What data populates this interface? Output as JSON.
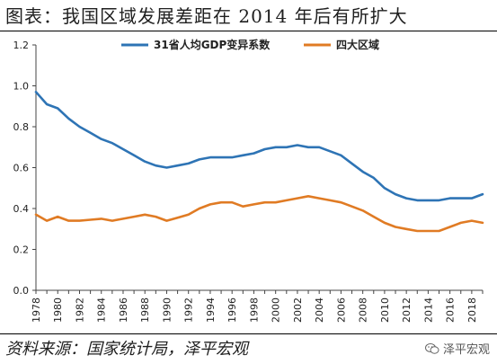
{
  "header": {
    "title": "图表：我国区域发展差距在 2014 年后有所扩大"
  },
  "footer": {
    "source": "资料来源：国家统计局，泽平宏观",
    "watermark": "泽平宏观",
    "watermark_icon": "wechat-icon"
  },
  "chart_data": {
    "type": "line",
    "title": "",
    "xlabel": "",
    "ylabel": "",
    "xlim": [
      1978,
      2019
    ],
    "ylim": [
      0,
      1.2
    ],
    "yticks": [
      "0.0",
      "0.2",
      "0.4",
      "0.6",
      "0.8",
      "1.0",
      "1.2"
    ],
    "xticks": [
      "1978",
      "1980",
      "1982",
      "1984",
      "1986",
      "1988",
      "1990",
      "1992",
      "1994",
      "1996",
      "1998",
      "2000",
      "2002",
      "2004",
      "2006",
      "2008",
      "2010",
      "2012",
      "2014",
      "2016",
      "2018"
    ],
    "grid": false,
    "legend_position": "top",
    "x": [
      1978,
      1979,
      1980,
      1981,
      1982,
      1983,
      1984,
      1985,
      1986,
      1987,
      1988,
      1989,
      1990,
      1991,
      1992,
      1993,
      1994,
      1995,
      1996,
      1997,
      1998,
      1999,
      2000,
      2001,
      2002,
      2003,
      2004,
      2005,
      2006,
      2007,
      2008,
      2009,
      2010,
      2011,
      2012,
      2013,
      2014,
      2015,
      2016,
      2017,
      2018,
      2019
    ],
    "series": [
      {
        "name": "31省人均GDP变异系数",
        "color": "#2E74B5",
        "values": [
          0.97,
          0.91,
          0.89,
          0.84,
          0.8,
          0.77,
          0.74,
          0.72,
          0.69,
          0.66,
          0.63,
          0.61,
          0.6,
          0.61,
          0.62,
          0.64,
          0.65,
          0.65,
          0.65,
          0.66,
          0.67,
          0.69,
          0.7,
          0.7,
          0.71,
          0.7,
          0.7,
          0.68,
          0.66,
          0.62,
          0.58,
          0.55,
          0.5,
          0.47,
          0.45,
          0.44,
          0.44,
          0.44,
          0.45,
          0.45,
          0.45,
          0.47
        ]
      },
      {
        "name": "四大区域",
        "color": "#E07B24",
        "values": [
          0.37,
          0.34,
          0.36,
          0.34,
          0.34,
          0.345,
          0.35,
          0.34,
          0.35,
          0.36,
          0.37,
          0.36,
          0.34,
          0.355,
          0.37,
          0.4,
          0.42,
          0.43,
          0.43,
          0.41,
          0.42,
          0.43,
          0.43,
          0.44,
          0.45,
          0.46,
          0.45,
          0.44,
          0.43,
          0.41,
          0.39,
          0.36,
          0.33,
          0.31,
          0.3,
          0.29,
          0.29,
          0.29,
          0.31,
          0.33,
          0.34,
          0.33
        ]
      }
    ]
  }
}
